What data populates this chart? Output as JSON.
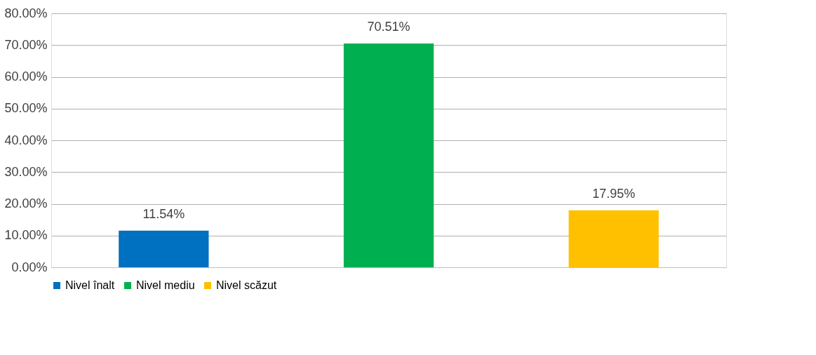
{
  "chart_data": {
    "type": "bar",
    "categories": [
      null,
      null,
      null
    ],
    "series": [
      {
        "name": "Nivel înalt",
        "color": "#0070c0",
        "values": [
          11.54,
          null,
          null
        ],
        "value_labels": [
          "11.54%",
          null,
          null
        ]
      },
      {
        "name": "Nivel mediu",
        "color": "#00b050",
        "values": [
          null,
          70.51,
          null
        ],
        "value_labels": [
          null,
          "70.51%",
          null
        ]
      },
      {
        "name": "Nivel scăzut",
        "color": "#ffc000",
        "values": [
          null,
          null,
          17.95
        ],
        "value_labels": [
          null,
          null,
          "17.95%"
        ]
      }
    ],
    "ylim": [
      0,
      80
    ],
    "yticks": [
      {
        "value": 0,
        "label": "0.00%"
      },
      {
        "value": 10,
        "label": "10.00%"
      },
      {
        "value": 20,
        "label": "20.00%"
      },
      {
        "value": 30,
        "label": "30.00%"
      },
      {
        "value": 40,
        "label": "40.00%"
      },
      {
        "value": 50,
        "label": "50.00%"
      },
      {
        "value": 60,
        "label": "60.00%"
      },
      {
        "value": 70,
        "label": "70.00%"
      },
      {
        "value": 80,
        "label": "80.00%"
      }
    ],
    "grid": "y",
    "legend": "bottom"
  }
}
